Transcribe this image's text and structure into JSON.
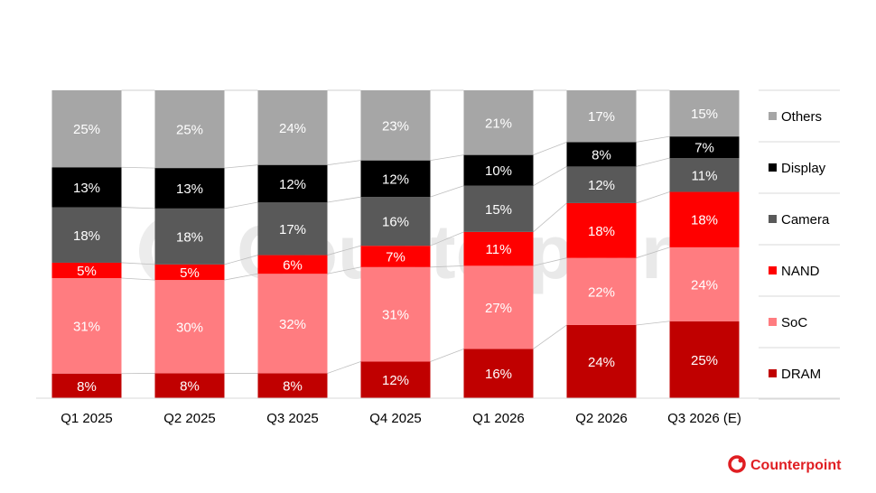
{
  "chart_data": {
    "type": "bar",
    "stacked": true,
    "percent_stacked": true,
    "categories": [
      "Q1 2025",
      "Q2 2025",
      "Q3 2025",
      "Q4 2025",
      "Q1 2026",
      "Q2 2026",
      "Q3 2026 (E)"
    ],
    "series": [
      {
        "name": "DRAM",
        "color": "#c00000",
        "values": [
          8,
          8,
          8,
          12,
          16,
          24,
          25
        ]
      },
      {
        "name": "SoC",
        "color": "#ff7c80",
        "values": [
          31,
          30,
          32,
          31,
          27,
          22,
          24
        ]
      },
      {
        "name": "NAND",
        "color": "#ff0000",
        "values": [
          5,
          5,
          6,
          7,
          11,
          18,
          18
        ]
      },
      {
        "name": "Camera",
        "color": "#595959",
        "values": [
          18,
          18,
          17,
          16,
          15,
          12,
          11
        ]
      },
      {
        "name": "Display",
        "color": "#000000",
        "values": [
          13,
          13,
          12,
          12,
          10,
          8,
          7
        ]
      },
      {
        "name": "Others",
        "color": "#a6a6a6",
        "values": [
          25,
          25,
          24,
          23,
          21,
          17,
          15
        ]
      }
    ],
    "value_suffix": "%",
    "legend_position": "right",
    "connector_lines": true,
    "grid": false
  },
  "branding": {
    "logo_text": "Counterpoint",
    "logo_icon": "counterpoint-logo-icon",
    "brand_color": "#e01e22"
  }
}
